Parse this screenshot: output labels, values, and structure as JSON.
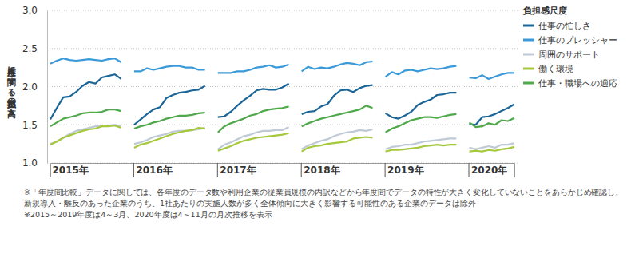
{
  "chart_data": {
    "type": "line",
    "y_label": "各尺度に関する負担感の高さ",
    "legend_title": "負担感尺度",
    "legend": "right",
    "grid": true,
    "ylim": [
      1.0,
      3.0
    ],
    "yticks": [
      {
        "value": 1.0,
        "label": "1.0"
      },
      {
        "value": 1.5,
        "label": "1.5"
      },
      {
        "value": 2.0,
        "label": "2.0"
      },
      {
        "value": 2.5,
        "label": "2.5"
      },
      {
        "value": 3.0,
        "label": "3.0"
      }
    ],
    "categories": [
      "2015年",
      null,
      null,
      null,
      null,
      null,
      null,
      null,
      null,
      null,
      null,
      null,
      null,
      "2016年",
      null,
      null,
      null,
      null,
      null,
      null,
      null,
      null,
      null,
      null,
      null,
      null,
      "2017年",
      null,
      null,
      null,
      null,
      null,
      null,
      null,
      null,
      null,
      null,
      null,
      null,
      "2018年",
      null,
      null,
      null,
      null,
      null,
      null,
      null,
      null,
      null,
      null,
      null,
      null,
      "2019年",
      null,
      null,
      null,
      null,
      null,
      null,
      null,
      null,
      null,
      null,
      null,
      null,
      "2020年",
      null,
      null,
      null,
      null,
      null,
      null,
      null
    ],
    "series": [
      {
        "name": "仕事の忙しさ",
        "color": "#1b6597",
        "values": [
          1.57,
          1.72,
          1.86,
          1.87,
          1.93,
          2.01,
          2.06,
          2.04,
          2.12,
          2.14,
          2.16,
          2.1,
          null,
          1.5,
          1.57,
          1.64,
          1.7,
          1.73,
          1.85,
          1.89,
          1.92,
          1.93,
          1.95,
          1.96,
          2.01,
          null,
          1.6,
          1.61,
          1.67,
          1.75,
          1.82,
          1.88,
          1.95,
          1.97,
          1.96,
          1.96,
          1.99,
          2.04,
          null,
          1.64,
          1.67,
          1.68,
          1.74,
          1.77,
          1.88,
          1.95,
          1.96,
          1.93,
          1.98,
          2.01,
          2.02,
          null,
          1.65,
          1.6,
          1.58,
          1.62,
          1.67,
          1.76,
          1.8,
          1.83,
          1.89,
          1.9,
          1.92,
          1.92,
          null,
          1.51,
          1.5,
          1.6,
          1.61,
          1.64,
          1.68,
          1.72,
          1.77
        ]
      },
      {
        "name": "仕事のプレッシャー",
        "color": "#3a9ad9",
        "values": [
          2.3,
          2.34,
          2.37,
          2.35,
          2.34,
          2.35,
          2.36,
          2.35,
          2.34,
          2.36,
          2.37,
          2.32,
          null,
          2.2,
          2.2,
          2.24,
          2.22,
          2.24,
          2.26,
          2.27,
          2.27,
          2.25,
          2.25,
          2.22,
          2.22,
          null,
          2.18,
          2.18,
          2.18,
          2.2,
          2.2,
          2.22,
          2.25,
          2.26,
          2.28,
          2.25,
          2.26,
          2.29,
          null,
          2.2,
          2.26,
          2.23,
          2.25,
          2.24,
          2.26,
          2.29,
          2.31,
          2.3,
          2.28,
          2.32,
          2.33,
          null,
          2.13,
          2.19,
          2.16,
          2.21,
          2.22,
          2.2,
          2.22,
          2.24,
          2.23,
          2.24,
          2.26,
          2.27,
          null,
          2.12,
          2.11,
          2.15,
          2.1,
          2.13,
          2.16,
          2.18,
          2.18
        ]
      },
      {
        "name": "周囲のサポート",
        "color": "#bfcad6",
        "values": [
          1.25,
          1.28,
          1.33,
          1.38,
          1.42,
          1.44,
          1.46,
          1.48,
          1.48,
          1.49,
          1.5,
          1.48,
          null,
          1.25,
          1.27,
          1.3,
          1.34,
          1.36,
          1.38,
          1.41,
          1.42,
          1.42,
          1.43,
          1.44,
          1.46,
          null,
          1.18,
          1.24,
          1.27,
          1.31,
          1.35,
          1.37,
          1.4,
          1.42,
          1.42,
          1.43,
          1.43,
          1.47,
          null,
          1.18,
          1.23,
          1.26,
          1.29,
          1.31,
          1.35,
          1.38,
          1.4,
          1.41,
          1.43,
          1.42,
          1.44,
          null,
          1.18,
          1.21,
          1.22,
          1.24,
          1.24,
          1.26,
          1.28,
          1.29,
          1.3,
          1.31,
          1.32,
          1.32,
          null,
          1.2,
          1.18,
          1.2,
          1.22,
          1.2,
          1.24,
          1.24,
          1.26
        ]
      },
      {
        "name": "働く環境",
        "color": "#a6c83c",
        "values": [
          1.24,
          1.28,
          1.33,
          1.36,
          1.39,
          1.42,
          1.44,
          1.45,
          1.48,
          1.48,
          1.49,
          1.46,
          null,
          1.2,
          1.24,
          1.26,
          1.29,
          1.32,
          1.35,
          1.38,
          1.4,
          1.42,
          1.43,
          1.46,
          1.45,
          null,
          1.16,
          1.19,
          1.22,
          1.26,
          1.29,
          1.31,
          1.33,
          1.34,
          1.35,
          1.36,
          1.37,
          1.39,
          null,
          1.15,
          1.2,
          1.22,
          1.23,
          1.25,
          1.26,
          1.27,
          1.28,
          1.32,
          1.33,
          1.34,
          1.33,
          null,
          1.15,
          1.17,
          1.17,
          1.18,
          1.19,
          1.2,
          1.22,
          1.23,
          1.24,
          1.23,
          1.24,
          1.24,
          null,
          1.15,
          1.16,
          1.15,
          1.17,
          1.16,
          1.18,
          1.19,
          1.21
        ]
      },
      {
        "name": "仕事・職場への適応",
        "color": "#4fa94a",
        "values": [
          1.48,
          1.53,
          1.58,
          1.6,
          1.62,
          1.65,
          1.66,
          1.66,
          1.67,
          1.7,
          1.7,
          1.68,
          null,
          1.45,
          1.48,
          1.5,
          1.53,
          1.55,
          1.58,
          1.6,
          1.62,
          1.62,
          1.63,
          1.65,
          1.66,
          null,
          1.4,
          1.48,
          1.52,
          1.55,
          1.58,
          1.62,
          1.64,
          1.68,
          1.7,
          1.71,
          1.72,
          1.74,
          null,
          1.48,
          1.52,
          1.55,
          1.58,
          1.6,
          1.62,
          1.64,
          1.66,
          1.68,
          1.7,
          1.75,
          1.72,
          null,
          1.4,
          1.45,
          1.48,
          1.52,
          1.56,
          1.58,
          1.6,
          1.6,
          1.59,
          1.61,
          1.63,
          1.64,
          null,
          1.53,
          1.47,
          1.48,
          1.52,
          1.5,
          1.56,
          1.55,
          1.59
        ]
      }
    ],
    "annotations": [
      "※「年度間比較」データに関しては、各年度のデータ数や利用企業の従業員規模の内訳などから年度間でデータの特性が大きく変化していないことをあらかじめ確認し、",
      "新規導入・離反のあった企業のうち、1社あたりの実施人数が多く全体傾向に大きく影響する可能性のある企業のデータは除外",
      "※2015～2019年度は4～3月、2020年度は4～11月の月次推移を表示"
    ]
  }
}
